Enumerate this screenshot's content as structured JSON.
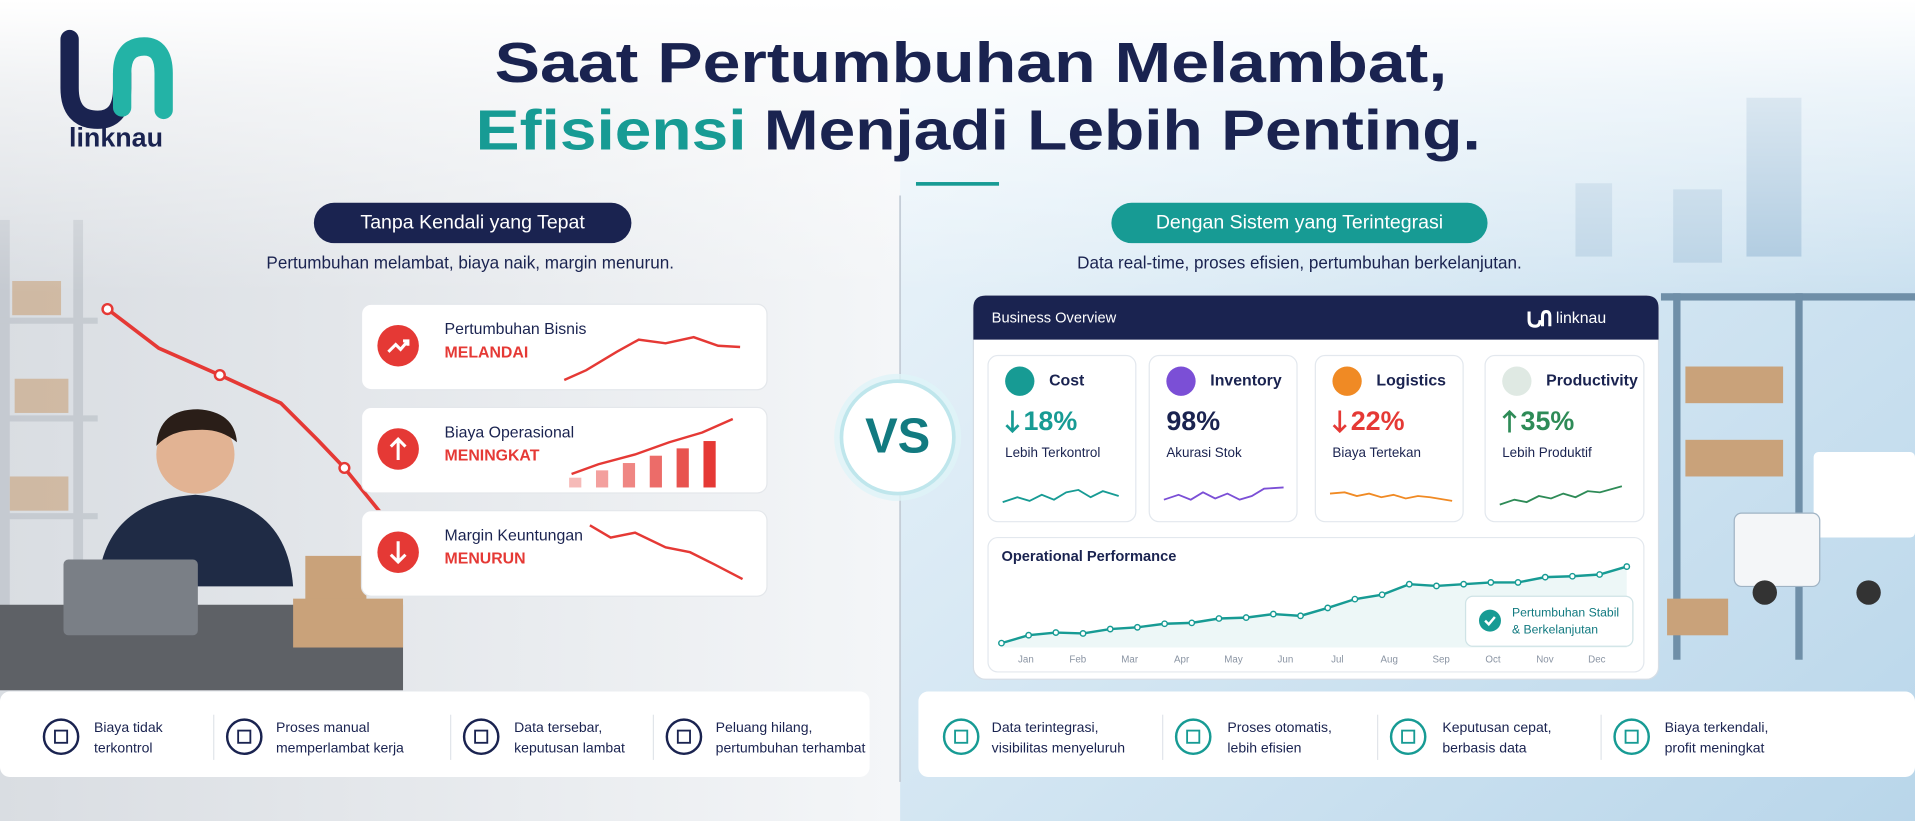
{
  "header": {
    "brand": "linknau",
    "title_line1": "Saat Pertumbuhan Melambat,",
    "title_highlight": "Efisiensi",
    "title_rest": "Menjadi Lebih Penting."
  },
  "left": {
    "badge": "Tanpa Kendali yang Tepat",
    "subtitle": "Pertumbuhan melambat, biaya naik, margin menurun.",
    "cards": [
      {
        "title": "Pertumbuhan Bisnis",
        "status": "MELANDAI"
      },
      {
        "title": "Biaya Operasional",
        "status": "MENINGKAT"
      },
      {
        "title": "Margin Keuntungan",
        "status": "MENURUN"
      }
    ],
    "footer": [
      {
        "lines": [
          "Biaya tidak",
          "terkontrol"
        ]
      },
      {
        "lines": [
          "Proses manual",
          "memperlambat kerja"
        ]
      },
      {
        "lines": [
          "Data tersebar,",
          "keputusan lambat"
        ]
      },
      {
        "lines": [
          "Peluang hilang,",
          "pertumbuhan terhambat"
        ]
      }
    ]
  },
  "vs": "VS",
  "right": {
    "badge": "Dengan Sistem yang Terintegrasi",
    "subtitle": "Data real-time, proses efisien, pertumbuhan berkelanjutan.",
    "dashboard": {
      "title": "Business Overview",
      "brand": "linknau",
      "kpis": [
        {
          "label": "Cost",
          "trend": "down",
          "value": "18%",
          "description": "Lebih Terkontrol",
          "color": "#179b94"
        },
        {
          "label": "Inventory",
          "value": "98%",
          "description": "Akurasi Stok",
          "color": "#1a2350"
        },
        {
          "label": "Logistics",
          "trend": "down",
          "value": "22%",
          "description": "Biaya Tertekan",
          "color": "#e53935"
        },
        {
          "label": "Productivity",
          "trend": "up",
          "value": "35%",
          "description": "Lebih Produktif",
          "color": "#2e8b57"
        }
      ],
      "performance": {
        "title": "Operational Performance",
        "months": [
          "Jan",
          "Feb",
          "Mar",
          "Apr",
          "May",
          "Jun",
          "Jul",
          "Aug",
          "Sep",
          "Oct",
          "Nov",
          "Dec"
        ],
        "ylim": [
          0,
          100
        ],
        "values": [
          5,
          14,
          17,
          16,
          21,
          23,
          27,
          28,
          33,
          34,
          38,
          36,
          45,
          55,
          60,
          72,
          70,
          72,
          74,
          74,
          80,
          81,
          83,
          92
        ],
        "color": "#179b94",
        "callout": [
          "Pertumbuhan Stabil",
          "& Berkelanjutan"
        ]
      }
    },
    "footer": [
      {
        "lines": [
          "Data terintegrasi,",
          "visibilitas menyeluruh"
        ]
      },
      {
        "lines": [
          "Proses otomatis,",
          "lebih efisien"
        ]
      },
      {
        "lines": [
          "Keputusan cepat,",
          "berbasis data"
        ]
      },
      {
        "lines": [
          "Biaya terkendali,",
          "profit meningkat"
        ]
      }
    ]
  }
}
